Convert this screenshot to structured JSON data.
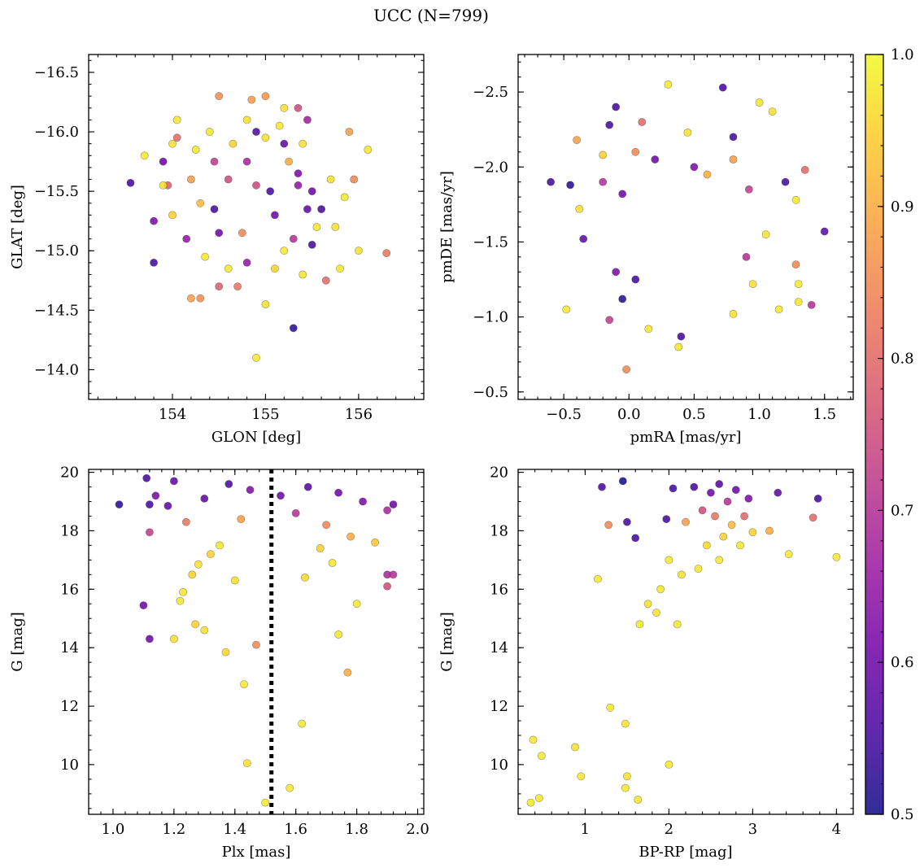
{
  "title": "UCC (N=799)",
  "colorbar": {
    "min": 0.5,
    "max": 1.0,
    "ticks": [
      "0.5",
      "0.6",
      "0.7",
      "0.8",
      "0.9",
      "1.0"
    ],
    "tick_values": [
      0.5,
      0.6,
      0.7,
      0.8,
      0.9,
      1.0
    ],
    "colormap": "plasma",
    "stops": [
      "#0d0887",
      "#46039f",
      "#7201a8",
      "#9c179e",
      "#bd3786",
      "#d8576b",
      "#ed7953",
      "#fb9f3a",
      "#fdca26",
      "#f0f921"
    ]
  },
  "chart_data": [
    {
      "id": "glon-glat",
      "type": "scatter",
      "xlabel": "GLON [deg]",
      "ylabel": "GLAT [deg]",
      "xlim": [
        153.1,
        156.7
      ],
      "ylim": [
        -16.65,
        -13.75
      ],
      "xticks": [
        154,
        155,
        156
      ],
      "xtick_labels": [
        "154",
        "155",
        "156"
      ],
      "yticks": [
        -16.5,
        -16.0,
        -15.5,
        -15.0,
        -14.5,
        -14.0
      ],
      "ytick_labels": [
        "−16.5",
        "−16.0",
        "−15.5",
        "−15.0",
        "−14.5",
        "−14.0"
      ],
      "x_minor_step": 0.2,
      "y_minor_step": 0.1,
      "points": [
        [
          154.9,
          -14.1,
          0.98
        ],
        [
          155.3,
          -14.35,
          0.52
        ],
        [
          154.2,
          -14.6,
          0.88
        ],
        [
          154.3,
          -14.6,
          0.86
        ],
        [
          154.5,
          -14.7,
          0.78
        ],
        [
          154.7,
          -14.7,
          0.82
        ],
        [
          155.0,
          -14.55,
          0.97
        ],
        [
          153.8,
          -14.9,
          0.55
        ],
        [
          153.8,
          -15.25,
          0.62
        ],
        [
          153.55,
          -15.57,
          0.55
        ],
        [
          153.7,
          -15.8,
          0.98
        ],
        [
          153.9,
          -15.75,
          0.6
        ],
        [
          154.0,
          -15.9,
          0.97
        ],
        [
          154.05,
          -15.95,
          0.8
        ],
        [
          154.05,
          -16.1,
          0.98
        ],
        [
          154.4,
          -16.0,
          0.98
        ],
        [
          154.5,
          -16.3,
          0.86
        ],
        [
          154.8,
          -16.1,
          0.97
        ],
        [
          154.85,
          -16.27,
          0.88
        ],
        [
          155.0,
          -16.3,
          0.87
        ],
        [
          155.2,
          -16.2,
          0.97
        ],
        [
          155.35,
          -16.2,
          0.75
        ],
        [
          155.45,
          -16.1,
          0.67
        ],
        [
          155.9,
          -16.0,
          0.88
        ],
        [
          156.1,
          -15.85,
          0.98
        ],
        [
          156.3,
          -14.98,
          0.82
        ],
        [
          156.0,
          -15.0,
          0.97
        ],
        [
          155.8,
          -14.85,
          0.98
        ],
        [
          155.65,
          -14.75,
          0.8
        ],
        [
          155.4,
          -14.8,
          0.98
        ],
        [
          155.6,
          -15.35,
          0.55
        ],
        [
          155.5,
          -15.5,
          0.6
        ],
        [
          155.7,
          -15.6,
          0.97
        ],
        [
          155.35,
          -15.65,
          0.62
        ],
        [
          155.2,
          -15.9,
          0.58
        ],
        [
          154.5,
          -15.15,
          0.6
        ],
        [
          154.6,
          -15.6,
          0.75
        ],
        [
          154.75,
          -15.15,
          0.85
        ],
        [
          154.3,
          -15.4,
          0.92
        ],
        [
          154.2,
          -15.6,
          0.88
        ],
        [
          154.0,
          -15.3,
          0.95
        ],
        [
          153.95,
          -15.55,
          0.78
        ],
        [
          154.25,
          -15.85,
          0.98
        ],
        [
          154.45,
          -15.75,
          0.72
        ],
        [
          154.65,
          -15.9,
          0.95
        ],
        [
          154.8,
          -15.75,
          0.68
        ],
        [
          155.25,
          -15.75,
          0.9
        ],
        [
          155.4,
          -15.9,
          0.97
        ],
        [
          155.55,
          -15.2,
          0.98
        ],
        [
          155.75,
          -15.2,
          0.97
        ],
        [
          155.85,
          -15.45,
          0.98
        ],
        [
          155.95,
          -15.6,
          0.85
        ],
        [
          154.6,
          -14.85,
          0.98
        ],
        [
          154.8,
          -14.9,
          0.65
        ],
        [
          155.1,
          -14.85,
          0.95
        ],
        [
          155.2,
          -15.0,
          0.98
        ],
        [
          155.3,
          -15.1,
          0.7
        ],
        [
          154.35,
          -14.95,
          0.98
        ],
        [
          154.15,
          -15.1,
          0.65
        ],
        [
          153.9,
          -15.55,
          0.97
        ],
        [
          155.0,
          -15.95,
          0.97
        ],
        [
          155.15,
          -16.05,
          0.98
        ],
        [
          154.9,
          -16.0,
          0.56
        ],
        [
          155.05,
          -15.5,
          0.55
        ],
        [
          155.1,
          -15.3,
          0.6
        ],
        [
          154.45,
          -15.35,
          0.55
        ],
        [
          155.45,
          -15.35,
          0.58
        ],
        [
          155.5,
          -15.05,
          0.55
        ],
        [
          154.9,
          -15.55,
          0.75
        ],
        [
          155.35,
          -15.55,
          0.65
        ]
      ]
    },
    {
      "id": "pmra-pmde",
      "type": "scatter",
      "xlabel": "pmRA [mas/yr]",
      "ylabel": "pmDE [mas/yr]",
      "xlim": [
        -0.85,
        1.72
      ],
      "ylim": [
        -2.75,
        -0.45
      ],
      "xticks": [
        -0.5,
        0.0,
        0.5,
        1.0,
        1.5
      ],
      "xtick_labels": [
        "−0.5",
        "0.0",
        "0.5",
        "1.0",
        "1.5"
      ],
      "yticks": [
        -2.5,
        -2.0,
        -1.5,
        -1.0,
        -0.5
      ],
      "ytick_labels": [
        "−2.5",
        "−2.0",
        "−1.5",
        "−1.0",
        "−0.5"
      ],
      "x_minor_step": 0.1,
      "y_minor_step": 0.1,
      "points": [
        [
          -0.02,
          -0.65,
          0.85
        ],
        [
          0.38,
          -0.8,
          0.98
        ],
        [
          0.4,
          -0.87,
          0.55
        ],
        [
          0.15,
          -0.92,
          0.98
        ],
        [
          -0.15,
          -0.98,
          0.72
        ],
        [
          -0.48,
          -1.05,
          0.98
        ],
        [
          -0.05,
          -1.12,
          0.52
        ],
        [
          0.8,
          -1.02,
          0.97
        ],
        [
          1.3,
          -1.1,
          0.98
        ],
        [
          1.4,
          -1.08,
          0.7
        ],
        [
          -0.6,
          -1.9,
          0.55
        ],
        [
          -0.45,
          -1.88,
          0.52
        ],
        [
          -0.38,
          -1.72,
          0.97
        ],
        [
          -0.35,
          -1.52,
          0.58
        ],
        [
          -0.4,
          -2.18,
          0.88
        ],
        [
          -0.2,
          -2.08,
          0.95
        ],
        [
          -0.15,
          -2.28,
          0.55
        ],
        [
          -0.1,
          -2.4,
          0.55
        ],
        [
          0.1,
          -2.3,
          0.8
        ],
        [
          0.3,
          -2.55,
          0.98
        ],
        [
          0.45,
          -2.23,
          0.97
        ],
        [
          0.72,
          -2.53,
          0.55
        ],
        [
          0.8,
          -2.2,
          0.55
        ],
        [
          1.0,
          -2.43,
          0.98
        ],
        [
          1.1,
          -2.37,
          0.97
        ],
        [
          1.35,
          -1.98,
          0.8
        ],
        [
          1.5,
          -1.57,
          0.58
        ],
        [
          1.28,
          -1.78,
          0.98
        ],
        [
          1.2,
          -1.9,
          0.55
        ],
        [
          1.28,
          -1.35,
          0.85
        ],
        [
          1.3,
          -1.22,
          0.98
        ],
        [
          1.15,
          -1.05,
          0.98
        ],
        [
          0.95,
          -1.22,
          0.97
        ],
        [
          0.9,
          -1.4,
          0.7
        ],
        [
          1.05,
          -1.55,
          0.98
        ],
        [
          0.2,
          -2.05,
          0.6
        ],
        [
          0.5,
          -2.0,
          0.62
        ],
        [
          0.05,
          -2.1,
          0.85
        ],
        [
          -0.2,
          -1.9,
          0.7
        ],
        [
          -0.05,
          -1.82,
          0.6
        ],
        [
          0.6,
          -1.95,
          0.9
        ],
        [
          0.8,
          -2.05,
          0.88
        ],
        [
          0.92,
          -1.85,
          0.72
        ],
        [
          -0.1,
          -1.3,
          0.62
        ],
        [
          0.05,
          -1.25,
          0.55
        ]
      ]
    },
    {
      "id": "plx-g",
      "type": "scatter",
      "xlabel": "Plx [mas]",
      "ylabel": "G [mag]",
      "xlim": [
        0.92,
        2.02
      ],
      "ylim": [
        20.1,
        8.3
      ],
      "xticks": [
        1.0,
        1.2,
        1.4,
        1.6,
        1.8,
        2.0
      ],
      "xtick_labels": [
        "1.0",
        "1.2",
        "1.4",
        "1.6",
        "1.8",
        "2.0"
      ],
      "yticks": [
        10,
        12,
        14,
        16,
        18,
        20
      ],
      "ytick_labels": [
        "10",
        "12",
        "14",
        "16",
        "18",
        "20"
      ],
      "x_minor_step": 0.04,
      "y_minor_step": 0.5,
      "vline": 1.52,
      "points": [
        [
          1.5,
          8.7,
          0.98
        ],
        [
          1.58,
          9.2,
          0.98
        ],
        [
          1.44,
          10.05,
          0.97
        ],
        [
          1.62,
          11.4,
          0.98
        ],
        [
          1.43,
          12.75,
          0.98
        ],
        [
          1.77,
          13.15,
          0.9
        ],
        [
          1.12,
          14.3,
          0.6
        ],
        [
          1.2,
          14.3,
          0.97
        ],
        [
          1.1,
          15.45,
          0.6
        ],
        [
          1.22,
          15.6,
          0.98
        ],
        [
          1.23,
          15.9,
          0.98
        ],
        [
          1.27,
          14.8,
          0.95
        ],
        [
          1.3,
          14.6,
          0.97
        ],
        [
          1.37,
          13.85,
          0.96
        ],
        [
          1.47,
          14.1,
          0.85
        ],
        [
          1.74,
          14.45,
          0.98
        ],
        [
          1.8,
          15.5,
          0.98
        ],
        [
          1.9,
          16.1,
          0.75
        ],
        [
          1.9,
          16.5,
          0.68
        ],
        [
          1.92,
          16.5,
          0.7
        ],
        [
          1.86,
          17.6,
          0.93
        ],
        [
          1.9,
          18.7,
          0.68
        ],
        [
          1.92,
          18.9,
          0.6
        ],
        [
          1.02,
          18.9,
          0.52
        ],
        [
          1.12,
          17.95,
          0.72
        ],
        [
          1.12,
          18.9,
          0.55
        ],
        [
          1.11,
          19.8,
          0.55
        ],
        [
          1.2,
          19.7,
          0.58
        ],
        [
          1.14,
          19.2,
          0.62
        ],
        [
          1.18,
          18.85,
          0.58
        ],
        [
          1.26,
          16.5,
          0.95
        ],
        [
          1.28,
          16.85,
          0.97
        ],
        [
          1.32,
          17.2,
          0.95
        ],
        [
          1.35,
          17.5,
          0.98
        ],
        [
          1.4,
          16.3,
          0.97
        ],
        [
          1.63,
          16.4,
          0.96
        ],
        [
          1.68,
          17.4,
          0.95
        ],
        [
          1.72,
          16.9,
          0.98
        ],
        [
          1.78,
          17.8,
          0.9
        ],
        [
          1.7,
          18.2,
          0.85
        ],
        [
          1.6,
          18.6,
          0.7
        ],
        [
          1.55,
          19.2,
          0.6
        ],
        [
          1.45,
          19.4,
          0.62
        ],
        [
          1.38,
          19.6,
          0.55
        ],
        [
          1.3,
          19.1,
          0.58
        ],
        [
          1.24,
          18.3,
          0.82
        ],
        [
          1.64,
          19.5,
          0.57
        ],
        [
          1.74,
          19.3,
          0.6
        ],
        [
          1.82,
          19.0,
          0.62
        ],
        [
          1.42,
          18.4,
          0.88
        ]
      ]
    },
    {
      "id": "bprp-g",
      "type": "scatter",
      "xlabel": "BP-RP [mag]",
      "ylabel": "G [mag]",
      "xlim": [
        0.2,
        4.2
      ],
      "ylim": [
        20.1,
        8.3
      ],
      "xticks": [
        1,
        2,
        3,
        4
      ],
      "xtick_labels": [
        "1",
        "2",
        "3",
        "4"
      ],
      "yticks": [
        10,
        12,
        14,
        16,
        18,
        20
      ],
      "ytick_labels": [
        "10",
        "12",
        "14",
        "16",
        "18",
        "20"
      ],
      "x_minor_step": 0.2,
      "y_minor_step": 0.5,
      "points": [
        [
          0.35,
          8.7,
          0.98
        ],
        [
          0.45,
          8.85,
          0.98
        ],
        [
          0.95,
          9.6,
          0.98
        ],
        [
          1.48,
          9.2,
          0.98
        ],
        [
          1.63,
          8.8,
          0.98
        ],
        [
          1.5,
          9.6,
          0.97
        ],
        [
          2.0,
          10.0,
          0.98
        ],
        [
          0.38,
          10.85,
          0.98
        ],
        [
          0.48,
          10.3,
          0.98
        ],
        [
          0.88,
          10.6,
          0.97
        ],
        [
          1.3,
          11.95,
          0.98
        ],
        [
          1.48,
          11.4,
          0.97
        ],
        [
          1.15,
          16.35,
          0.98
        ],
        [
          1.28,
          18.2,
          0.85
        ],
        [
          1.5,
          18.3,
          0.55
        ],
        [
          1.6,
          17.75,
          0.55
        ],
        [
          1.97,
          18.4,
          0.55
        ],
        [
          2.05,
          19.45,
          0.55
        ],
        [
          1.45,
          19.7,
          0.5
        ],
        [
          1.2,
          19.5,
          0.55
        ],
        [
          3.3,
          19.3,
          0.58
        ],
        [
          3.78,
          19.1,
          0.55
        ],
        [
          3.72,
          18.45,
          0.8
        ],
        [
          3.43,
          17.2,
          0.98
        ],
        [
          4.0,
          17.1,
          0.98
        ],
        [
          3.2,
          18.0,
          0.9
        ],
        [
          3.0,
          17.95,
          0.95
        ],
        [
          2.85,
          17.5,
          0.98
        ],
        [
          2.6,
          17.0,
          0.98
        ],
        [
          2.9,
          18.5,
          0.8
        ],
        [
          2.7,
          19.0,
          0.7
        ],
        [
          2.5,
          19.3,
          0.6
        ],
        [
          2.3,
          19.5,
          0.55
        ],
        [
          2.6,
          19.6,
          0.57
        ],
        [
          2.8,
          19.4,
          0.6
        ],
        [
          2.95,
          19.1,
          0.62
        ],
        [
          2.4,
          18.7,
          0.75
        ],
        [
          2.2,
          18.3,
          0.88
        ],
        [
          2.55,
          18.5,
          0.82
        ],
        [
          2.75,
          18.2,
          0.92
        ],
        [
          1.9,
          16.0,
          0.98
        ],
        [
          2.15,
          16.5,
          0.97
        ],
        [
          2.35,
          16.7,
          0.98
        ],
        [
          1.75,
          15.5,
          0.97
        ],
        [
          2.1,
          14.8,
          0.98
        ],
        [
          1.65,
          14.8,
          0.98
        ],
        [
          1.85,
          15.2,
          0.97
        ],
        [
          2.45,
          17.5,
          0.96
        ],
        [
          2.0,
          17.0,
          0.98
        ],
        [
          2.65,
          17.8,
          0.95
        ]
      ]
    }
  ]
}
